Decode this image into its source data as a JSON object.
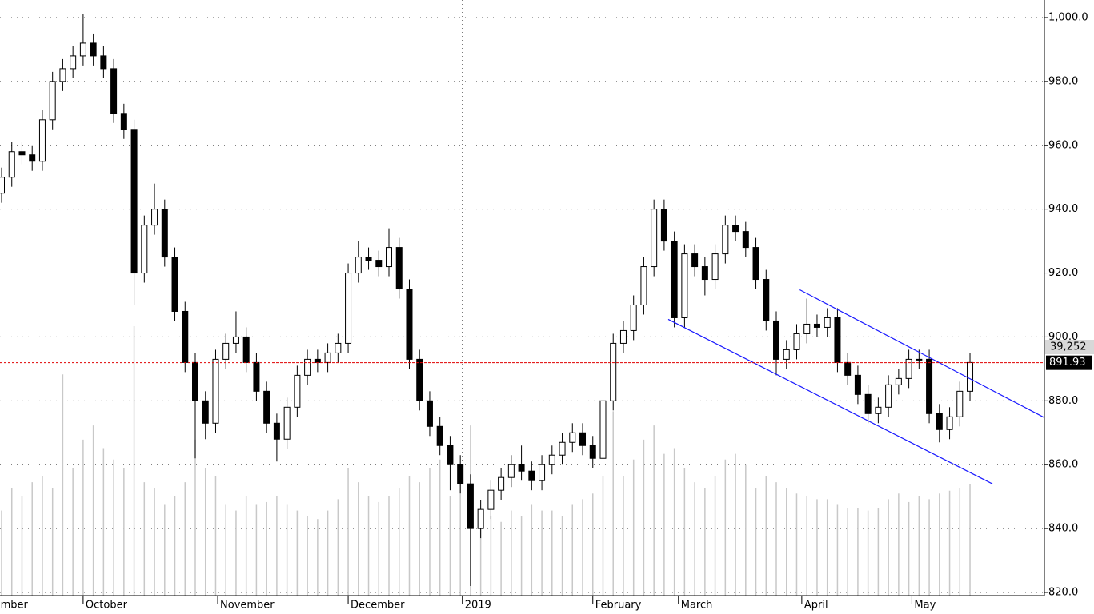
{
  "chart_data": {
    "type": "candlestick",
    "open": [
      945,
      950,
      958,
      957,
      955,
      968,
      980,
      984,
      988,
      992,
      988,
      984,
      970,
      965,
      920,
      935,
      940,
      925,
      908,
      892,
      880,
      873,
      893,
      898,
      900,
      892,
      883,
      873,
      868,
      878,
      888,
      893,
      892,
      895,
      898,
      920,
      925,
      924,
      922,
      928,
      915,
      893,
      880,
      872,
      866,
      860,
      854,
      840,
      846,
      852,
      856,
      860,
      858,
      855,
      860,
      863,
      867,
      870,
      866,
      862,
      880,
      898,
      902,
      910,
      922,
      940,
      930,
      906,
      926,
      922,
      918,
      926,
      935,
      933,
      928,
      918,
      905,
      893,
      896,
      901,
      904,
      903,
      906,
      892,
      888,
      882,
      876,
      878,
      885,
      887,
      893,
      893,
      876,
      871,
      875,
      883
    ],
    "high": [
      953,
      961,
      961,
      960,
      971,
      983,
      987,
      991,
      1001,
      995,
      991,
      987,
      973,
      968,
      938,
      948,
      943,
      928,
      911,
      895,
      883,
      896,
      901,
      908,
      903,
      895,
      886,
      876,
      881,
      891,
      896,
      896,
      898,
      901,
      923,
      930,
      928,
      927,
      934,
      931,
      918,
      896,
      883,
      875,
      869,
      863,
      857,
      849,
      855,
      859,
      863,
      866,
      861,
      863,
      866,
      870,
      873,
      873,
      869,
      883,
      901,
      905,
      913,
      925,
      943,
      943,
      933,
      929,
      929,
      925,
      929,
      938,
      938,
      936,
      931,
      921,
      908,
      899,
      904,
      912,
      907,
      909,
      909,
      895,
      891,
      885,
      881,
      888,
      890,
      896,
      896,
      896,
      879,
      878,
      886,
      895
    ],
    "low": [
      942,
      947,
      954,
      952,
      952,
      965,
      977,
      981,
      985,
      985,
      981,
      967,
      962,
      910,
      917,
      932,
      922,
      905,
      889,
      862,
      868,
      870,
      890,
      895,
      889,
      880,
      870,
      861,
      865,
      875,
      885,
      889,
      889,
      892,
      895,
      917,
      921,
      919,
      919,
      912,
      890,
      877,
      869,
      863,
      852,
      851,
      822,
      837,
      843,
      849,
      853,
      855,
      852,
      852,
      857,
      860,
      864,
      863,
      859,
      859,
      877,
      895,
      899,
      907,
      919,
      927,
      903,
      903,
      919,
      913,
      915,
      923,
      930,
      925,
      915,
      902,
      888,
      890,
      893,
      898,
      900,
      900,
      889,
      885,
      879,
      873,
      873,
      875,
      882,
      884,
      890,
      873,
      867,
      868,
      872,
      880
    ],
    "close": [
      950,
      958,
      957,
      955,
      968,
      980,
      984,
      988,
      992,
      988,
      984,
      970,
      965,
      920,
      935,
      940,
      925,
      908,
      892,
      880,
      873,
      893,
      898,
      900,
      892,
      883,
      873,
      868,
      878,
      888,
      893,
      892,
      895,
      898,
      920,
      925,
      924,
      922,
      928,
      915,
      893,
      880,
      872,
      866,
      860,
      854,
      840,
      846,
      852,
      856,
      860,
      858,
      855,
      860,
      863,
      867,
      870,
      866,
      862,
      880,
      898,
      902,
      910,
      922,
      940,
      930,
      906,
      926,
      922,
      918,
      926,
      935,
      933,
      928,
      918,
      905,
      893,
      896,
      901,
      904,
      903,
      906,
      892,
      888,
      882,
      876,
      878,
      885,
      887,
      893,
      893,
      876,
      871,
      875,
      883,
      892
    ],
    "volume": [
      30000,
      38000,
      35000,
      40000,
      42000,
      38000,
      78000,
      45000,
      55000,
      60000,
      52000,
      48000,
      45000,
      95000,
      40000,
      38000,
      32000,
      35000,
      40000,
      55000,
      45000,
      42000,
      32000,
      30000,
      35000,
      32000,
      33000,
      35000,
      32000,
      30000,
      28000,
      27000,
      30000,
      34000,
      45000,
      40000,
      35000,
      33000,
      35000,
      38000,
      42000,
      40000,
      45000,
      48000,
      35000,
      42000,
      60000,
      30000,
      28000,
      26000,
      30000,
      28000,
      32000,
      30000,
      30000,
      28000,
      32000,
      34000,
      36000,
      42000,
      65000,
      42000,
      48000,
      55000,
      60000,
      50000,
      52000,
      45000,
      40000,
      38000,
      42000,
      48000,
      50000,
      46000,
      38000,
      42000,
      40000,
      38000,
      36000,
      35000,
      34000,
      34000,
      32000,
      31000,
      31000,
      30000,
      31000,
      34000,
      36000,
      33000,
      35000,
      34000,
      36000,
      37000,
      38000,
      39252
    ],
    "last_volume_label": "39,252",
    "up_color": "#ffffff",
    "down_color": "#000000",
    "volume_color": "#c8c8c8",
    "xlim": [
      -0.157,
      102.3
    ],
    "xticks": [
      {
        "value": -3.3,
        "label": "September"
      },
      {
        "value": 8,
        "label": "October"
      },
      {
        "value": 21.2,
        "label": "November"
      },
      {
        "value": 34,
        "label": "December"
      },
      {
        "value": 45.2,
        "label": "2019"
      },
      {
        "value": 58,
        "label": "February"
      },
      {
        "value": 66.4,
        "label": "March"
      },
      {
        "value": 78.5,
        "label": "April"
      },
      {
        "value": 89.3,
        "label": "May"
      }
    ],
    "ylim": [
      819,
      1005.5
    ],
    "yticks": [
      {
        "value": 820,
        "label": "820.0"
      },
      {
        "value": 840,
        "label": "840.0"
      },
      {
        "value": 860,
        "label": "860.0"
      },
      {
        "value": 880,
        "label": "880.0"
      },
      {
        "value": 900,
        "label": "900.0"
      },
      {
        "value": 920,
        "label": "920.0"
      },
      {
        "value": 940,
        "label": "940.0"
      },
      {
        "value": 960,
        "label": "960.0"
      },
      {
        "value": 980,
        "label": "980.0"
      },
      {
        "value": 1000,
        "label": "1,000.0"
      }
    ],
    "y2lim": [
      0,
      210000
    ],
    "grid": true,
    "reference_line": {
      "value": 891.93,
      "label": "891.93",
      "color": "#e00000"
    },
    "trendlines": [
      {
        "x": [
          65.4,
          97.2
        ],
        "y": [
          905.5,
          854
        ],
        "color": "#1a1aff"
      },
      {
        "x": [
          78.3,
          102.3
        ],
        "y": [
          914.75,
          874.75
        ],
        "color": "#1a1aff"
      }
    ]
  }
}
